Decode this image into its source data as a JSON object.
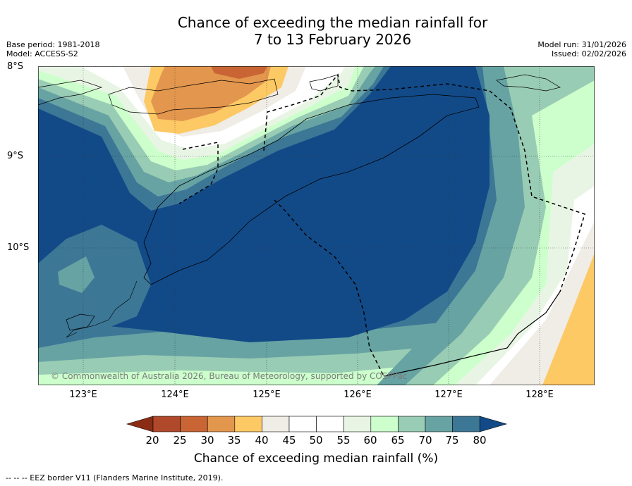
{
  "title_line1": "Chance of exceeding the median rainfall for",
  "title_line2": "7 to 13 February 2026",
  "meta": {
    "base_period": "Base period: 1981-2018",
    "model": "Model: ACCESS-S2",
    "model_run": "Model run: 31/01/2026",
    "issued": "Issued: 02/02/2026"
  },
  "lat_labels": [
    "8°S",
    "9°S",
    "10°S"
  ],
  "lon_labels": [
    "123°E",
    "124°E",
    "125°E",
    "126°E",
    "127°E",
    "128°E"
  ],
  "copyright": "© Commonwealth of Australia 2026, Bureau of Meteorology, supported by COSPPac",
  "colorbar": {
    "title": "Chance of exceeding median rainfall (%)",
    "ticks": [
      "20",
      "25",
      "30",
      "35",
      "40",
      "45",
      "50",
      "55",
      "60",
      "65",
      "70",
      "75",
      "80"
    ],
    "colors": {
      "below20": "#8b2d14",
      "c20_25": "#b0492b",
      "c25_30": "#c96534",
      "c30_35": "#e3964d",
      "c35_40": "#fdc965",
      "c40_45": "#f0ece6",
      "c45_50": "#ffffff",
      "c50_55": "#ffffff",
      "c55_60": "#e8f5e4",
      "c60_65": "#ccffcc",
      "c65_70": "#99ccb4",
      "c70_75": "#67a3a3",
      "c75_80": "#3c7796",
      "above80": "#124a88"
    }
  },
  "footer": "-- -- -- EEZ border V11 (Flanders Marine Institute, 2019)."
}
